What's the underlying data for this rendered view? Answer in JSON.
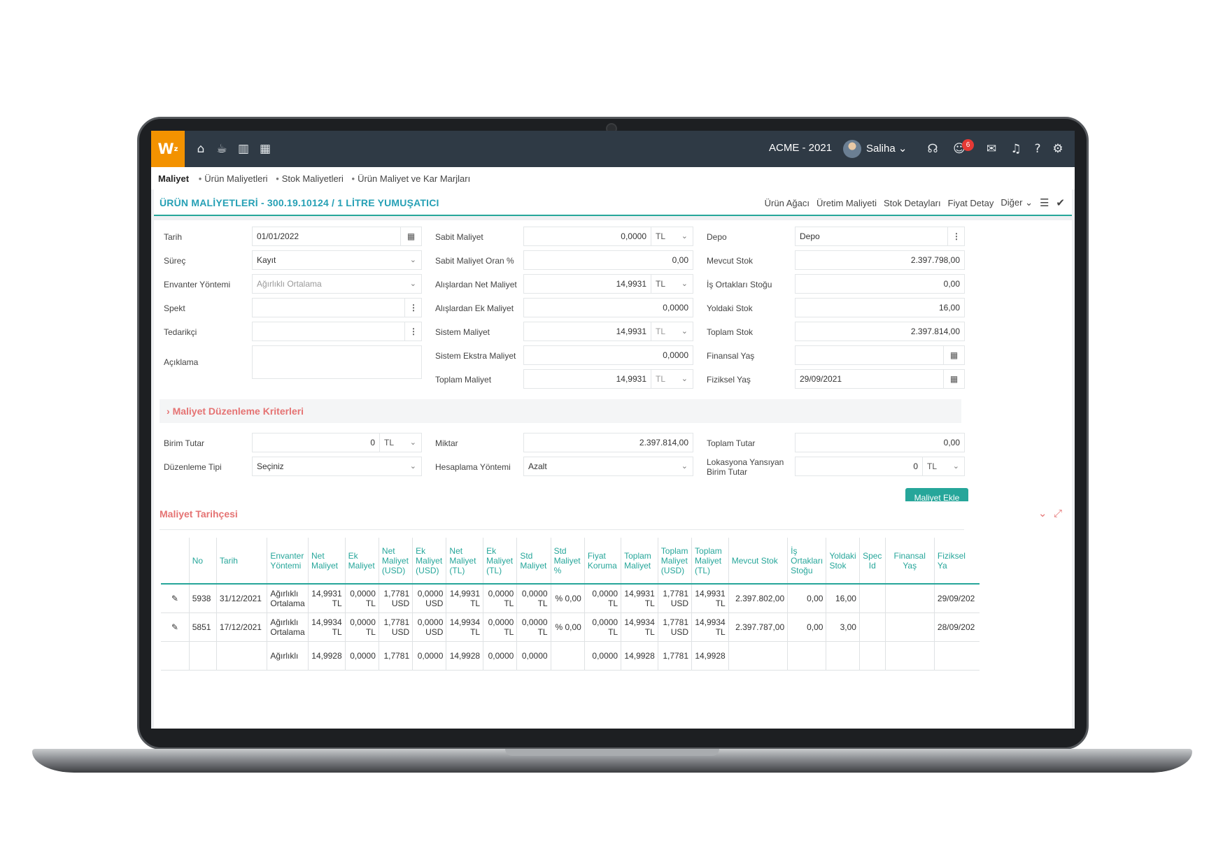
{
  "topbar": {
    "logo": "W",
    "logo_sup": "z",
    "company": "ACME - 2021",
    "user": "Saliha",
    "notif_count": "6"
  },
  "breadcrumb": {
    "root": "Maliyet",
    "items": [
      "Ürün Maliyetleri",
      "Stok Maliyetleri",
      "Ürün Maliyet ve Kar Marjları"
    ]
  },
  "page": {
    "title": "ÜRÜN MALİYETLERİ - 300.19.10124 / 1 LİTRE YUMUŞATICI",
    "links": [
      "Ürün Ağacı",
      "Üretim Maliyeti",
      "Stok Detayları",
      "Fiyat Detay",
      "Diğer"
    ]
  },
  "form": {
    "tarih_label": "Tarih",
    "tarih": "01/01/2022",
    "surec_label": "Süreç",
    "surec": "Kayıt",
    "envanter_label": "Envanter Yöntemi",
    "envanter": "Ağırlıklı Ortalama",
    "spekt_label": "Spekt",
    "tedarikci_label": "Tedarikçi",
    "aciklama_label": "Açıklama",
    "sabit_maliyet_label": "Sabit Maliyet",
    "sabit_maliyet": "0,0000",
    "sabit_oran_label": "Sabit Maliyet Oran %",
    "sabit_oran": "0,00",
    "net_maliyet_label": "Alışlardan Net Maliyet",
    "net_maliyet": "14,9931",
    "ek_maliyet_label": "Alışlardan Ek Maliyet",
    "ek_maliyet": "0,0000",
    "sistem_maliyet_label": "Sistem Maliyet",
    "sistem_maliyet": "14,9931",
    "sistem_ekstra_label": "Sistem Ekstra Maliyet",
    "sistem_ekstra": "0,0000",
    "toplam_maliyet_label": "Toplam Maliyet",
    "toplam_maliyet": "14,9931",
    "currency": "TL",
    "depo_label": "Depo",
    "depo_placeholder": "Depo",
    "mevcut_stok_label": "Mevcut Stok",
    "mevcut_stok": "2.397.798,00",
    "is_ortaklari_label": "İş Ortakları Stoğu",
    "is_ortaklari": "0,00",
    "yoldaki_label": "Yoldaki Stok",
    "yoldaki": "16,00",
    "toplam_stok_label": "Toplam Stok",
    "toplam_stok": "2.397.814,00",
    "finansal_yas_label": "Finansal Yaş",
    "fiziksel_yas_label": "Fiziksel Yaş",
    "fiziksel_yas": "29/09/2021"
  },
  "criteria": {
    "title": "Maliyet Düzenleme Kriterleri",
    "birim_tutar_label": "Birim Tutar",
    "birim_tutar": "0",
    "duzenleme_label": "Düzenleme Tipi",
    "duzenleme": "Seçiniz",
    "miktar_label": "Miktar",
    "miktar": "2.397.814,00",
    "hesaplama_label": "Hesaplama Yöntemi",
    "hesaplama": "Azalt",
    "toplam_tutar_label": "Toplam Tutar",
    "toplam_tutar": "0,00",
    "lokasyon_label_1": "Lokasyona Yansıyan",
    "lokasyon_label_2": "Birim Tutar",
    "lokasyon": "0",
    "add_button": "Maliyet Ekle"
  },
  "history": {
    "title": "Maliyet Tarihçesi",
    "columns": [
      "No",
      "Tarih",
      "Envanter Yöntemi",
      "Net Maliyet",
      "Ek Maliyet",
      "Net Maliyet (USD)",
      "Ek Maliyet (USD)",
      "Net Maliyet (TL)",
      "Ek Maliyet (TL)",
      "Std Maliyet",
      "Std Maliyet %",
      "Fiyat Koruma",
      "Toplam Maliyet",
      "Toplam Maliyet (USD)",
      "Toplam Maliyet (TL)",
      "Mevcut Stok",
      "İş Ortakları Stoğu",
      "Yoldaki Stok",
      "Spec Id",
      "Finansal Yaş",
      "Fiziksel Ya"
    ],
    "rows": [
      [
        "5938",
        "31/12/2021",
        "Ağırlıklı Ortalama",
        "14,9931 TL",
        "0,0000 TL",
        "1,7781 USD",
        "0,0000 USD",
        "14,9931 TL",
        "0,0000 TL",
        "0,0000 TL",
        "% 0,00",
        "0,0000 TL",
        "14,9931 TL",
        "1,7781 USD",
        "14,9931 TL",
        "2.397.802,00",
        "0,00",
        "16,00",
        "",
        "",
        "29/09/202"
      ],
      [
        "5851",
        "17/12/2021",
        "Ağırlıklı Ortalama",
        "14,9934 TL",
        "0,0000 TL",
        "1,7781 USD",
        "0,0000 USD",
        "14,9934 TL",
        "0,0000 TL",
        "0,0000 TL",
        "% 0,00",
        "0,0000 TL",
        "14,9934 TL",
        "1,7781 USD",
        "14,9934 TL",
        "2.397.787,00",
        "0,00",
        "3,00",
        "",
        "",
        "28/09/202"
      ],
      [
        "",
        "",
        "Ağırlıklı",
        "14,9928",
        "0,0000",
        "1,7781",
        "0,0000",
        "14,9928",
        "0,0000",
        "0,0000",
        "",
        "0,0000",
        "14,9928",
        "1,7781",
        "14,9928",
        "",
        "",
        "",
        "",
        "",
        ""
      ]
    ]
  }
}
